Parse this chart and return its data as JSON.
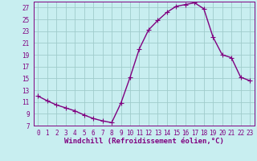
{
  "hours": [
    0,
    1,
    2,
    3,
    4,
    5,
    6,
    7,
    8,
    9,
    10,
    11,
    12,
    13,
    14,
    15,
    16,
    17,
    18,
    19,
    20,
    21,
    22,
    23
  ],
  "values": [
    12.0,
    11.2,
    10.5,
    10.0,
    9.5,
    8.8,
    8.2,
    7.8,
    7.5,
    10.8,
    15.2,
    20.0,
    23.2,
    24.8,
    26.2,
    27.2,
    27.5,
    27.8,
    26.8,
    22.0,
    19.0,
    18.5,
    15.2,
    14.6
  ],
  "line_color": "#800080",
  "marker": "+",
  "marker_size": 4,
  "bg_color": "#c8eef0",
  "grid_color": "#a0cccc",
  "xlabel": "Windchill (Refroidissement éolien,°C)",
  "ylim": [
    7,
    28
  ],
  "yticks": [
    7,
    9,
    11,
    13,
    15,
    17,
    19,
    21,
    23,
    25,
    27
  ],
  "xlim_min": -0.5,
  "xlim_max": 23.5,
  "xticks": [
    0,
    1,
    2,
    3,
    4,
    5,
    6,
    7,
    8,
    9,
    10,
    11,
    12,
    13,
    14,
    15,
    16,
    17,
    18,
    19,
    20,
    21,
    22,
    23
  ],
  "tick_label_size": 5.5,
  "xlabel_size": 6.5,
  "spine_color": "#800080",
  "line_width": 1.0,
  "marker_edge_width": 0.8
}
